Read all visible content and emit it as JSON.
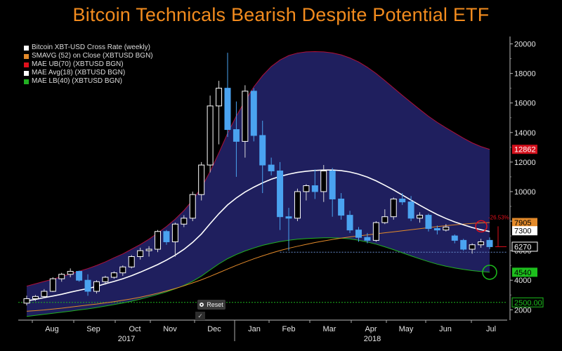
{
  "title": "Bitcoin Technicals Bearish Despite Potential ETF",
  "reset_label": "Reset",
  "tool_icon": "check-icon",
  "colors": {
    "title": "#f28b1e",
    "envelope_fill": "#1f1f5e",
    "envelope_edge": "#b0103a",
    "bull_candle": "#ffffff",
    "bear_candle": "#4aa3f0",
    "sma52": "#e38a2a",
    "mae_avg": "#ffffff",
    "mae_lb": "#22b022",
    "label_ub": "#e0101c",
    "label_sma": "#e38a2a",
    "label_lb": "#1dbf1d"
  },
  "chart_data": {
    "type": "candlestick",
    "title": "Bitcoin Technicals Bearish Despite Potential ETF",
    "ylim": [
      1300,
      20500
    ],
    "y_ticks": [
      2000,
      4000,
      6000,
      8000,
      10000,
      12000,
      14000,
      16000,
      18000,
      20000
    ],
    "x_month_labels": [
      "Aug",
      "Sep",
      "Oct",
      "Nov",
      "Dec",
      "Jan",
      "Feb",
      "Mar",
      "Apr",
      "May",
      "Jun",
      "Jul"
    ],
    "x_year_labels": [
      "2017",
      "2018"
    ],
    "legend": [
      "Bitcoin XBT-USD Cross Rate (weekly)",
      "SMAVG (52) on Close (XBTUSD BGN)",
      "MAE UB(70) (XBTUSD BGN)",
      "MAE Avg(18) (XBTUSD BGN)",
      "MAE LB(40) (XBTUSD BGN)"
    ],
    "value_labels": {
      "mae_ub": "12862",
      "sma52": "7905",
      "mae_avg": "7300",
      "last_close": "6270",
      "mae_lb": "4540",
      "reference": "2500.00"
    },
    "annotation": "-26.53%",
    "reference_level": 2500,
    "support_level": 5900,
    "candles": [
      {
        "o": 2450,
        "h": 2950,
        "l": 2300,
        "c": 2750
      },
      {
        "o": 2750,
        "h": 3000,
        "l": 2600,
        "c": 2900
      },
      {
        "o": 2900,
        "h": 3400,
        "l": 2800,
        "c": 3250
      },
      {
        "o": 3250,
        "h": 4200,
        "l": 3200,
        "c": 4100
      },
      {
        "o": 4100,
        "h": 4500,
        "l": 3900,
        "c": 4400
      },
      {
        "o": 4400,
        "h": 4800,
        "l": 4200,
        "c": 4600
      },
      {
        "o": 4600,
        "h": 4650,
        "l": 3900,
        "c": 4000
      },
      {
        "o": 4000,
        "h": 4400,
        "l": 2950,
        "c": 3250
      },
      {
        "o": 3250,
        "h": 4000,
        "l": 3100,
        "c": 3900
      },
      {
        "o": 3900,
        "h": 4300,
        "l": 3700,
        "c": 4200
      },
      {
        "o": 4200,
        "h": 4600,
        "l": 4100,
        "c": 4500
      },
      {
        "o": 4500,
        "h": 5000,
        "l": 4300,
        "c": 4900
      },
      {
        "o": 4900,
        "h": 5700,
        "l": 4800,
        "c": 5600
      },
      {
        "o": 5600,
        "h": 6200,
        "l": 5400,
        "c": 6000
      },
      {
        "o": 6000,
        "h": 6300,
        "l": 5600,
        "c": 6100
      },
      {
        "o": 6100,
        "h": 7400,
        "l": 5900,
        "c": 7300
      },
      {
        "o": 7300,
        "h": 7400,
        "l": 6400,
        "c": 6600
      },
      {
        "o": 6600,
        "h": 7900,
        "l": 5600,
        "c": 7800
      },
      {
        "o": 7800,
        "h": 8400,
        "l": 7600,
        "c": 8200
      },
      {
        "o": 8200,
        "h": 10000,
        "l": 8000,
        "c": 9800
      },
      {
        "o": 9800,
        "h": 12000,
        "l": 9400,
        "c": 11800
      },
      {
        "o": 11800,
        "h": 16500,
        "l": 11300,
        "c": 15800
      },
      {
        "o": 15800,
        "h": 17500,
        "l": 13200,
        "c": 17000
      },
      {
        "o": 17000,
        "h": 19400,
        "l": 13700,
        "c": 14200
      },
      {
        "o": 14200,
        "h": 16100,
        "l": 11000,
        "c": 13400
      },
      {
        "o": 13400,
        "h": 17200,
        "l": 12300,
        "c": 16800
      },
      {
        "o": 16800,
        "h": 17000,
        "l": 13400,
        "c": 13800
      },
      {
        "o": 13800,
        "h": 14800,
        "l": 9900,
        "c": 11800
      },
      {
        "o": 11800,
        "h": 12300,
        "l": 11100,
        "c": 11400
      },
      {
        "o": 11400,
        "h": 12000,
        "l": 7400,
        "c": 8300
      },
      {
        "o": 8300,
        "h": 8900,
        "l": 6000,
        "c": 8200
      },
      {
        "o": 8200,
        "h": 10200,
        "l": 8000,
        "c": 10000
      },
      {
        "o": 10000,
        "h": 10500,
        "l": 9400,
        "c": 10400
      },
      {
        "o": 10400,
        "h": 11500,
        "l": 9500,
        "c": 10000
      },
      {
        "o": 10000,
        "h": 11800,
        "l": 9300,
        "c": 11400
      },
      {
        "o": 11400,
        "h": 11600,
        "l": 8300,
        "c": 9500
      },
      {
        "o": 9500,
        "h": 9900,
        "l": 8100,
        "c": 8400
      },
      {
        "o": 8400,
        "h": 8700,
        "l": 7200,
        "c": 7400
      },
      {
        "o": 7400,
        "h": 7600,
        "l": 6600,
        "c": 6900
      },
      {
        "o": 6900,
        "h": 7200,
        "l": 6500,
        "c": 6700
      },
      {
        "o": 6700,
        "h": 8000,
        "l": 6600,
        "c": 7900
      },
      {
        "o": 7900,
        "h": 8800,
        "l": 7800,
        "c": 8300
      },
      {
        "o": 8300,
        "h": 9600,
        "l": 8100,
        "c": 9500
      },
      {
        "o": 9500,
        "h": 9900,
        "l": 9100,
        "c": 9300
      },
      {
        "o": 9300,
        "h": 9700,
        "l": 8000,
        "c": 8200
      },
      {
        "o": 8200,
        "h": 8600,
        "l": 7900,
        "c": 8400
      },
      {
        "o": 8400,
        "h": 8500,
        "l": 7300,
        "c": 7500
      },
      {
        "o": 7500,
        "h": 7700,
        "l": 7100,
        "c": 7400
      },
      {
        "o": 7400,
        "h": 7800,
        "l": 7300,
        "c": 7600
      },
      {
        "o": 7000,
        "h": 7100,
        "l": 6500,
        "c": 6700
      },
      {
        "o": 6700,
        "h": 6800,
        "l": 6000,
        "c": 6100
      },
      {
        "o": 6100,
        "h": 6500,
        "l": 5800,
        "c": 6400
      },
      {
        "o": 6400,
        "h": 6800,
        "l": 6200,
        "c": 6600
      },
      {
        "o": 6700,
        "h": 6900,
        "l": 6100,
        "c": 6270
      }
    ],
    "series": [
      {
        "name": "MAE UB(70) (XBTUSD BGN)",
        "values": [
          3600,
          3760,
          3920,
          4070,
          4240,
          4430,
          4610,
          4790,
          5000,
          5240,
          5520,
          5780,
          6100,
          6420,
          6780,
          7200,
          7640,
          8140,
          8720,
          9420,
          10280,
          11360,
          12620,
          13950,
          15120,
          16140,
          17090,
          17850,
          18470,
          18910,
          19210,
          19380,
          19460,
          19480,
          19460,
          19390,
          19260,
          19050,
          18780,
          18420,
          18000,
          17520,
          17020,
          16520,
          16040,
          15560,
          15100,
          14690,
          14320,
          13970,
          13620,
          13300,
          13050,
          12862
        ]
      },
      {
        "name": "MAE Avg(18) (XBTUSD BGN)",
        "values": [
          2600,
          2700,
          2820,
          2930,
          3050,
          3190,
          3320,
          3440,
          3580,
          3760,
          3920,
          4100,
          4310,
          4540,
          4800,
          5060,
          5360,
          5700,
          6090,
          6560,
          7130,
          7830,
          8500,
          9100,
          9570,
          9970,
          10300,
          10590,
          10840,
          11030,
          11180,
          11300,
          11380,
          11430,
          11460,
          11460,
          11420,
          11330,
          11180,
          10980,
          10730,
          10430,
          10110,
          9770,
          9420,
          9080,
          8750,
          8450,
          8180,
          7950,
          7750,
          7570,
          7420,
          7300
        ]
      },
      {
        "name": "SMAVG (52) on Close (XBTUSD BGN)",
        "values": [
          1900,
          1940,
          1990,
          2050,
          2110,
          2180,
          2250,
          2320,
          2390,
          2470,
          2550,
          2640,
          2740,
          2850,
          2980,
          3120,
          3270,
          3440,
          3620,
          3820,
          4030,
          4260,
          4510,
          4760,
          5000,
          5230,
          5450,
          5650,
          5840,
          6010,
          6160,
          6300,
          6430,
          6550,
          6660,
          6760,
          6850,
          6930,
          7000,
          7070,
          7140,
          7210,
          7280,
          7350,
          7420,
          7490,
          7560,
          7630,
          7690,
          7750,
          7800,
          7850,
          7880,
          7905
        ]
      },
      {
        "name": "MAE LB(40) (XBTUSD BGN)",
        "values": [
          1550,
          1620,
          1690,
          1760,
          1830,
          1910,
          1990,
          2060,
          2150,
          2250,
          2350,
          2460,
          2580,
          2720,
          2880,
          3040,
          3210,
          3420,
          3650,
          3930,
          4280,
          4700,
          5100,
          5460,
          5740,
          5980,
          6180,
          6360,
          6500,
          6620,
          6710,
          6780,
          6820,
          6850,
          6870,
          6870,
          6850,
          6800,
          6710,
          6590,
          6440,
          6260,
          6070,
          5860,
          5650,
          5450,
          5260,
          5090,
          4950,
          4830,
          4730,
          4650,
          4590,
          4540
        ]
      }
    ]
  }
}
